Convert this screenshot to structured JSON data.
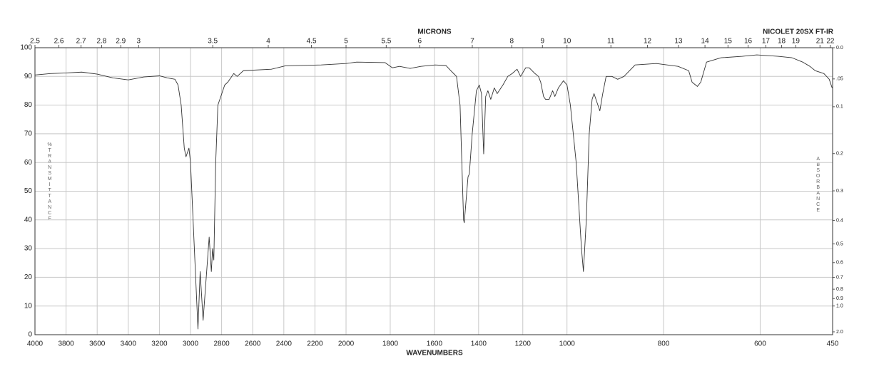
{
  "chart_data": {
    "type": "line",
    "title": "NICOLET 20SX FT-IR",
    "xlabel": "WAVENUMBERS",
    "x2label": "MICRONS",
    "ylabel": "%TRANSMITTANCE",
    "y2label": "ABSORBANCE",
    "color": "#333333",
    "grid": true,
    "xlim": [
      4000,
      450
    ],
    "x_scale_breaks": [
      2000,
      1000
    ],
    "xticks": [
      4000,
      3800,
      3600,
      3400,
      3200,
      3000,
      2800,
      2600,
      2400,
      2200,
      2000,
      1800,
      1600,
      1400,
      1200,
      1000,
      800,
      600,
      450
    ],
    "x2ticks": [
      2.5,
      2.6,
      2.7,
      2.8,
      2.9,
      3,
      3.5,
      4,
      4.5,
      5,
      5.5,
      6,
      7,
      8,
      9,
      10,
      11,
      12,
      13,
      14,
      15,
      16,
      17,
      18,
      19,
      21,
      22
    ],
    "ylim": [
      0,
      100
    ],
    "yticks": [
      0,
      10,
      20,
      30,
      40,
      50,
      60,
      70,
      80,
      90,
      100
    ],
    "y2ticks": [
      {
        "value": 0,
        "label": "0.0"
      },
      {
        "value": 0.05,
        "label": ".05"
      },
      0.1,
      0.2,
      0.3,
      0.4,
      0.5,
      0.6,
      0.7,
      0.8,
      0.9,
      {
        "value": 1,
        "label": "1.0"
      },
      {
        "value": 2,
        "label": "2.0"
      }
    ],
    "x": [
      4000,
      3900,
      3800,
      3700,
      3600,
      3500,
      3400,
      3300,
      3200,
      3150,
      3100,
      3080,
      3060,
      3040,
      3029,
      3010,
      3000,
      2952,
      2938,
      2919,
      2880,
      2866,
      2858,
      2850,
      2838,
      2824,
      2780,
      2760,
      2722,
      2700,
      2660,
      2480,
      2390,
      2160,
      2000,
      1952,
      1823,
      1790,
      1758,
      1710,
      1661,
      1597,
      1548,
      1526,
      1500,
      1484,
      1468,
      1465,
      1448,
      1442,
      1429,
      1410,
      1397,
      1387,
      1377,
      1368,
      1358,
      1345,
      1329,
      1316,
      1290,
      1268,
      1248,
      1226,
      1210,
      1187,
      1171,
      1145,
      1129,
      1119,
      1106,
      1097,
      1081,
      1065,
      1055,
      1039,
      1016,
      1000,
      993,
      981,
      970,
      966,
      960,
      954,
      948,
      944,
      936,
      932,
      926,
      919,
      907,
      895,
      882,
      859,
      815,
      770,
      748,
      741,
      730,
      723,
      711,
      681,
      637,
      607,
      563,
      534,
      512,
      497,
      486,
      468,
      457,
      451
    ],
    "values": [
      90.5,
      91,
      91.2,
      91.5,
      90.8,
      89.5,
      88.8,
      89.8,
      90.2,
      89.5,
      89,
      87,
      80,
      65,
      62,
      65,
      60,
      2,
      22,
      5,
      34,
      22,
      30,
      26,
      60,
      80,
      87,
      88,
      91,
      90,
      92,
      92.5,
      93.7,
      94,
      94.5,
      95,
      94.8,
      93,
      93.5,
      92.8,
      93.5,
      94,
      93.8,
      92,
      90,
      80,
      40,
      39,
      55,
      56,
      70,
      85,
      87,
      84,
      63,
      83,
      85,
      82,
      86,
      84,
      87,
      90,
      91,
      92.5,
      90,
      93,
      93,
      91,
      90,
      88,
      83,
      82,
      82,
      85,
      83,
      86,
      88.5,
      87,
      80,
      60,
      30,
      22,
      40,
      70,
      82,
      84,
      80,
      78,
      84,
      90,
      90,
      89,
      90,
      94,
      94.5,
      93.5,
      92,
      88,
      86.5,
      88,
      95,
      96.5,
      97,
      97.5,
      97,
      96.5,
      95,
      93.5,
      92,
      91,
      89,
      86
    ]
  }
}
